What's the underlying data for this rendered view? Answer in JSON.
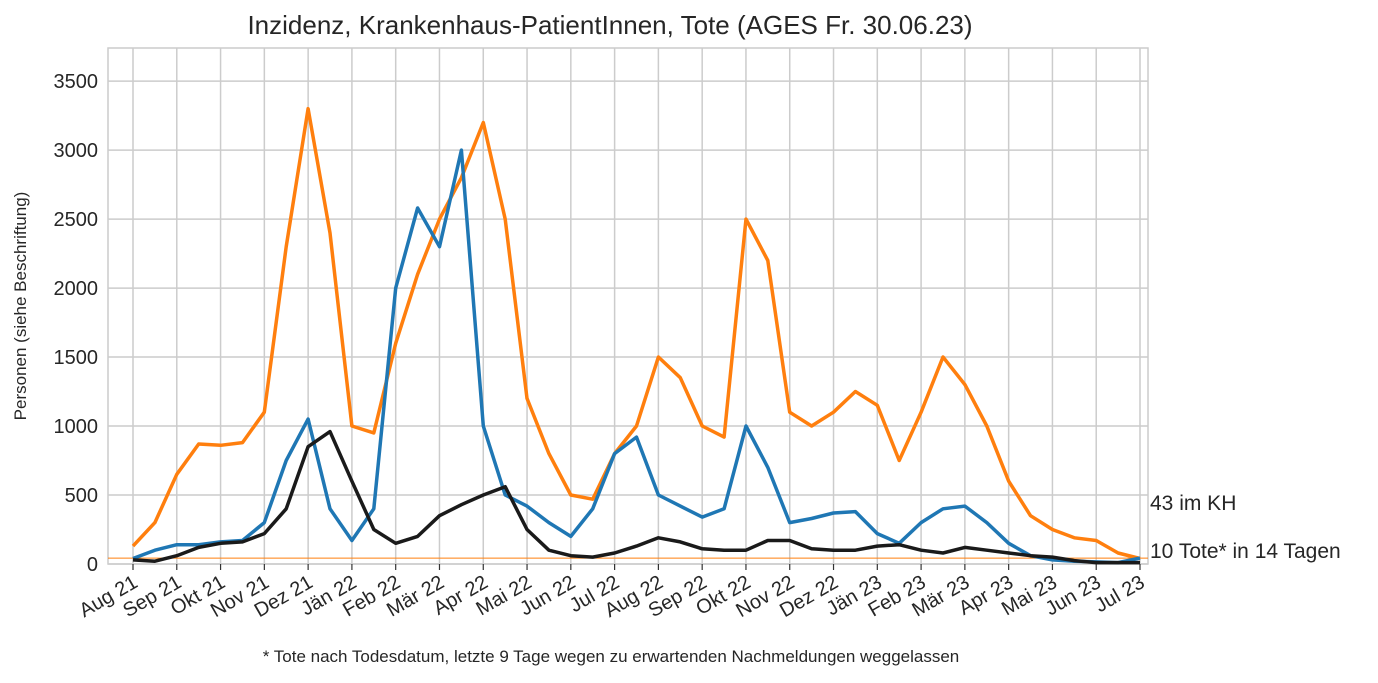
{
  "chart_data": {
    "type": "line",
    "title": "Inzidenz, Krankenhaus-PatientInnen, Tote (AGES Fr. 30.06.23)",
    "ylabel": "Personen (siehe Beschriftung)",
    "footnote": "* Tote nach Todesdatum, letzte 9 Tage wegen zu erwartenden Nachmeldungen weggelassen",
    "categories": [
      "Aug 21",
      null,
      "Sep 21",
      null,
      "Okt 21",
      null,
      "Nov 21",
      null,
      "Dez 21",
      null,
      "Jän 22",
      null,
      "Feb 22",
      null,
      "Mär 22",
      null,
      "Apr 22",
      null,
      "Mai 22",
      null,
      "Jun 22",
      null,
      "Jul 22",
      null,
      "Aug 22",
      null,
      "Sep 22",
      null,
      "Okt 22",
      null,
      "Nov 22",
      null,
      "Dez 22",
      null,
      "Jän 23",
      null,
      "Feb 23",
      null,
      "Mär 23",
      null,
      "Apr 23",
      null,
      "Mai 23",
      null,
      "Jun 23",
      null,
      "Jul 23"
    ],
    "series": [
      {
        "color": "#ff7f0e",
        "values": [
          130,
          300,
          650,
          870,
          860,
          880,
          1100,
          2300,
          3300,
          2400,
          1000,
          950,
          1600,
          2100,
          2500,
          2800,
          3200,
          2500,
          1200,
          800,
          500,
          470,
          800,
          1000,
          1500,
          1350,
          1000,
          920,
          2500,
          2200,
          1100,
          1000,
          1100,
          1250,
          1150,
          750,
          1100,
          1500,
          1300,
          1000,
          600,
          350,
          250,
          190,
          170,
          80,
          40
        ]
      },
      {
        "color": "#1f77b4",
        "values": [
          40,
          100,
          140,
          140,
          160,
          170,
          300,
          750,
          1050,
          400,
          170,
          400,
          2000,
          2580,
          2300,
          3000,
          1000,
          500,
          420,
          300,
          200,
          400,
          800,
          920,
          500,
          420,
          340,
          400,
          1000,
          700,
          300,
          330,
          370,
          380,
          220,
          150,
          300,
          400,
          420,
          300,
          150,
          60,
          30,
          20,
          15,
          10,
          43
        ]
      },
      {
        "color": "#1a1a1a",
        "values": [
          30,
          20,
          60,
          120,
          150,
          160,
          220,
          400,
          850,
          960,
          600,
          250,
          150,
          200,
          350,
          430,
          500,
          560,
          250,
          100,
          60,
          50,
          80,
          130,
          190,
          160,
          110,
          100,
          100,
          170,
          170,
          110,
          100,
          100,
          130,
          140,
          100,
          80,
          120,
          100,
          80,
          60,
          50,
          25,
          10,
          10,
          10
        ]
      }
    ],
    "hline": {
      "value": 43,
      "color": "#ff7f0e"
    },
    "annotations": [
      "43 im KH",
      "10 Tote* in 14 Tagen"
    ],
    "ylim": [
      0,
      3740
    ],
    "yticks": [
      0,
      500,
      1000,
      1500,
      2000,
      2500,
      3000,
      3500
    ],
    "grid": true
  }
}
